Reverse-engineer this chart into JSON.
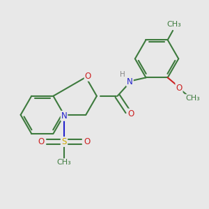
{
  "bg_color": "#e8e8e8",
  "bond_color": "#3d7a3d",
  "bond_width": 1.5,
  "N_color": "#2222cc",
  "O_color": "#cc2222",
  "S_color": "#ccaa00",
  "C_color": "#3d7a3d",
  "font_size": 8.5,
  "xlim": [
    0,
    10
  ],
  "ylim": [
    0,
    10
  ]
}
